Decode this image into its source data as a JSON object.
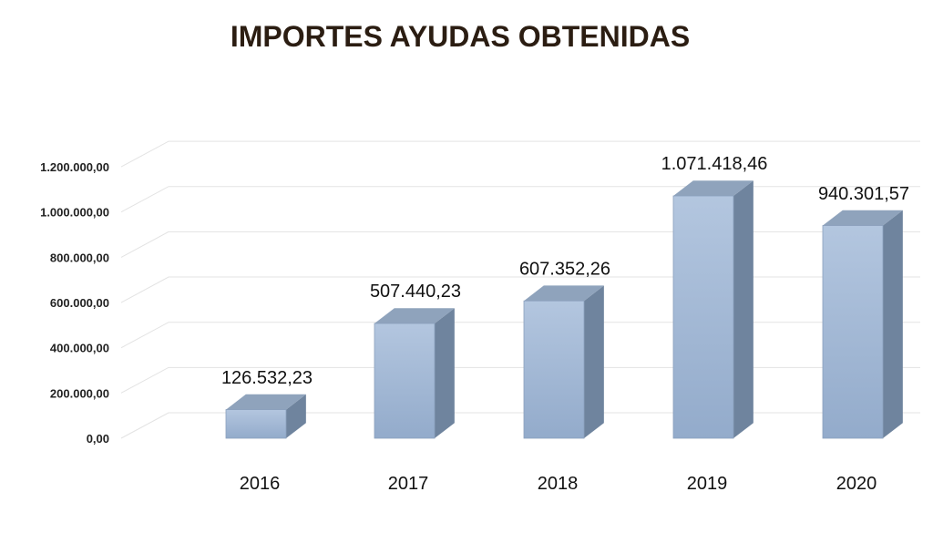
{
  "chart_data": {
    "type": "bar",
    "title": "IMPORTES AYUDAS OBTENIDAS",
    "xlabel": "",
    "ylabel": "",
    "categories": [
      "2016",
      "2017",
      "2018",
      "2019",
      "2020"
    ],
    "values": [
      126532.23,
      507440.23,
      607352.26,
      1071418.46,
      940301.57
    ],
    "data_labels": [
      "126.532,23",
      "507.440,23",
      "607.352,26",
      "1.071.418,46",
      "940.301,57"
    ],
    "y_ticks": [
      0,
      200000,
      400000,
      600000,
      800000,
      1000000,
      1200000
    ],
    "y_tick_labels": [
      "0,00",
      "200.000,00",
      "400.000,00",
      "600.000,00",
      "800.000,00",
      "1.000.000,00",
      "1.200.000,00"
    ],
    "ylim": [
      0,
      1300000
    ],
    "grid": true,
    "style": "3d-column",
    "colors": {
      "bar_front_top": "#b3c6df",
      "bar_front_bottom": "#93abcb",
      "bar_side": "#6f849e",
      "bar_top": "#8fa3bc",
      "grid": "#e3e3e3",
      "title": "#2b1d12"
    }
  }
}
